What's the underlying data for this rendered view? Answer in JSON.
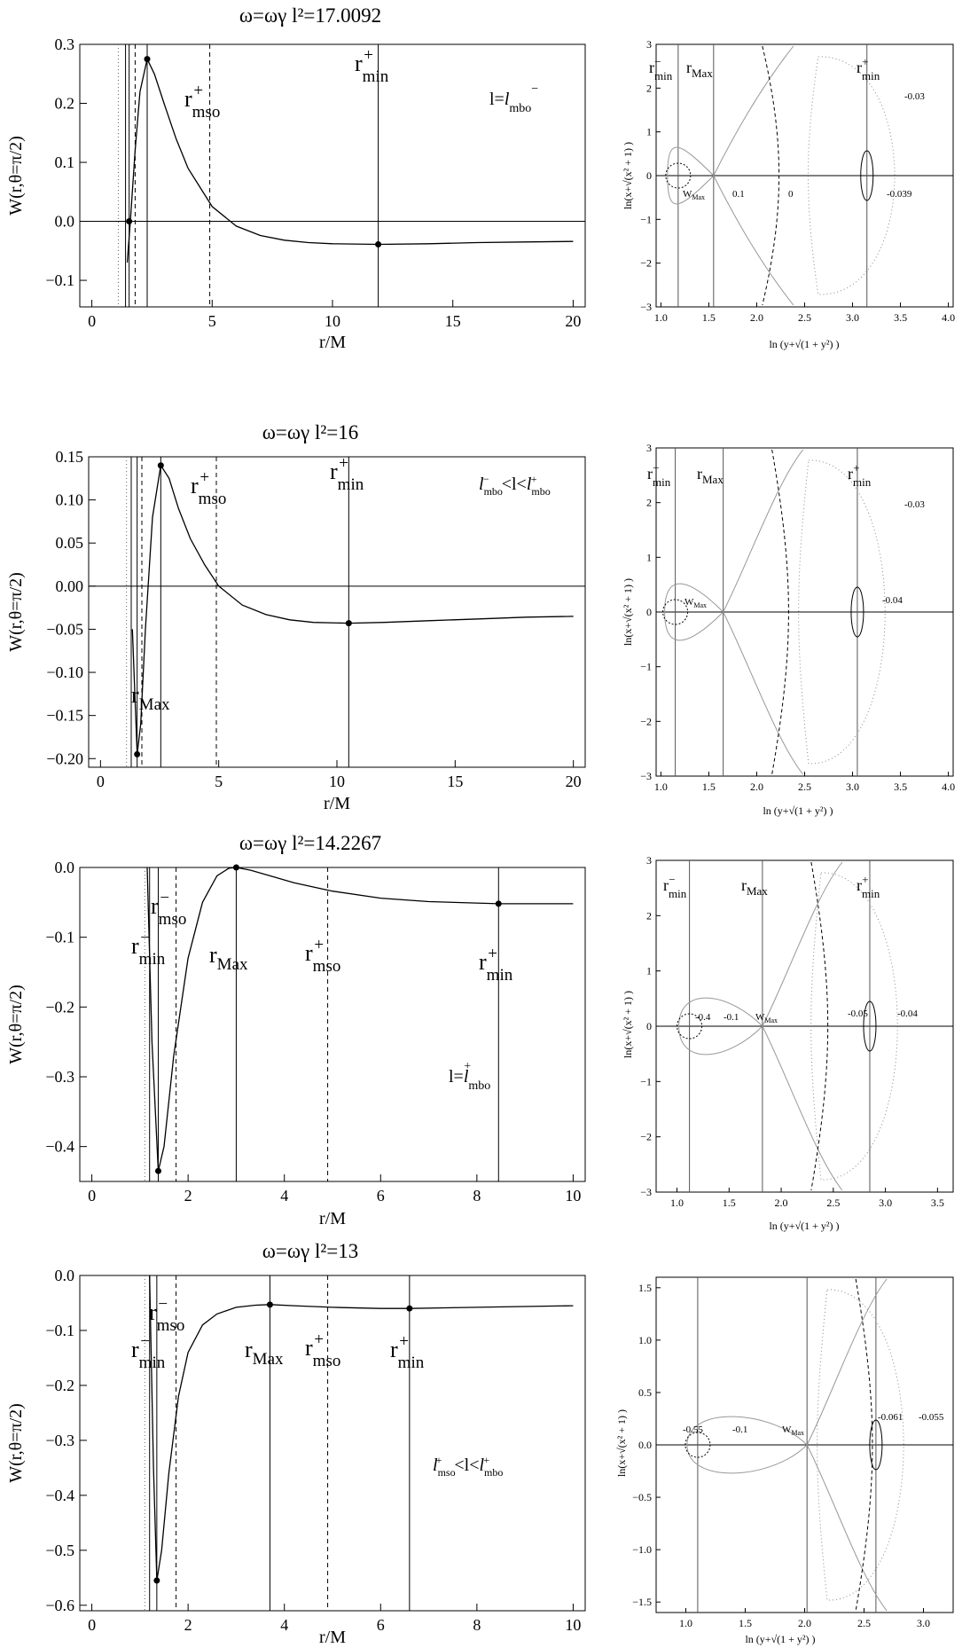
{
  "panels": [
    {
      "title": "ω=ωγ l²=17.0092",
      "xlabel": "r/M",
      "ylabel": "W(r,θ=π/2)",
      "annotation": "l=l⁻mbo",
      "marker_labels": [
        "r⁺mso",
        "r⁺min"
      ],
      "contour": {
        "xlabel": "ln (y+√(1 + y²) )",
        "ylabel": "ln(x+√(x² + 1) )",
        "labels": [
          "r⁻min",
          "rMax",
          "r⁺min",
          "WMax",
          "0.1",
          "0",
          "-0.039",
          "-0.03"
        ]
      }
    },
    {
      "title": "ω=ωγ l²=16",
      "xlabel": "r/M",
      "ylabel": "W(r,θ=π/2)",
      "annotation": "l⁻mbo<l<l⁺mbo",
      "marker_labels": [
        "r⁺mso",
        "r⁺min",
        "rMax"
      ],
      "contour": {
        "xlabel": "ln (y+√(1 + y²) )",
        "ylabel": "ln(x+√(x² + 1) )",
        "labels": [
          "r⁻min",
          "rMax",
          "r⁺min",
          "WMax",
          "-0.03",
          "-0.04"
        ]
      }
    },
    {
      "title": "ω=ωγ l²=14.2267",
      "xlabel": "r/M",
      "ylabel": "W(r,θ=π/2)",
      "annotation": "l=l⁺mbo",
      "marker_labels": [
        "r⁻mso",
        "r⁻min",
        "rMax",
        "r⁺mso",
        "r⁺min"
      ],
      "contour": {
        "xlabel": "ln (y+√(1 + y²) )",
        "ylabel": "ln(x+√(x² + 1) )",
        "labels": [
          "r⁻min",
          "rMax",
          "r⁺min",
          "WMax",
          "-0.4",
          "-0.1",
          "-0.05",
          "-0.04"
        ]
      }
    },
    {
      "title": "ω=ωγ l²=13",
      "xlabel": "r/M",
      "ylabel": "W(r,θ=π/2)",
      "annotation": "l⁺mso<l<l⁺mbo",
      "marker_labels": [
        "r⁻mso",
        "r⁻min",
        "rMax",
        "r⁺mso",
        "r⁺min"
      ],
      "contour": {
        "xlabel": "ln (y+√(1 + y²) )",
        "ylabel": "ln(x+√(x² + 1) )",
        "labels": [
          "WMax",
          "-0.55",
          "-0.1",
          "-0.061",
          "-0.055"
        ]
      }
    }
  ],
  "chart_data": [
    {
      "type": "line",
      "title": "ω=ωγ l²=17.0092",
      "xlabel": "r/M",
      "ylabel": "W(r,θ=π/2)",
      "xlim": [
        -0.5,
        20.5
      ],
      "ylim": [
        -0.145,
        0.3
      ],
      "xticks": [
        0,
        5,
        10,
        15,
        20
      ],
      "yticks": [
        -0.1,
        0.0,
        0.1,
        0.2,
        0.3
      ],
      "series": [
        {
          "x": [
            1.47,
            1.6,
            1.8,
            2.0,
            2.3,
            2.6,
            3.0,
            3.5,
            4.0,
            5.0,
            6.0,
            7.0,
            8.0,
            9.0,
            10.0,
            11.9,
            14.0,
            16.0,
            18.0,
            20.0
          ],
          "y": [
            -0.07,
            0.0,
            0.12,
            0.22,
            0.275,
            0.25,
            0.2,
            0.14,
            0.09,
            0.025,
            -0.008,
            -0.024,
            -0.032,
            -0.036,
            -0.038,
            -0.039,
            -0.038,
            -0.036,
            -0.035,
            -0.034
          ]
        }
      ],
      "points": [
        {
          "x": 1.55,
          "y": 0.0
        },
        {
          "x": 2.3,
          "y": 0.275
        },
        {
          "x": 11.9,
          "y": -0.039
        }
      ],
      "vlines": [
        {
          "x": 1.1,
          "style": "dotted"
        },
        {
          "x": 1.4,
          "style": "solid"
        },
        {
          "x": 1.55,
          "style": "solid"
        },
        {
          "x": 1.8,
          "style": "dashed"
        },
        {
          "x": 2.3,
          "style": "solid"
        },
        {
          "x": 4.9,
          "style": "dashed"
        },
        {
          "x": 11.9,
          "style": "solid"
        }
      ]
    },
    {
      "type": "line",
      "title": "ω=ωγ l²=16",
      "xlabel": "r/M",
      "ylabel": "W(r,θ=π/2)",
      "xlim": [
        -0.5,
        20.5
      ],
      "ylim": [
        -0.21,
        0.15
      ],
      "xticks": [
        0,
        5,
        10,
        15,
        20
      ],
      "yticks": [
        -0.2,
        -0.15,
        -0.1,
        -0.05,
        0.0,
        0.05,
        0.1,
        0.15
      ],
      "series": [
        {
          "x": [
            1.35,
            1.55,
            1.7,
            1.9,
            2.2,
            2.55,
            2.9,
            3.3,
            3.8,
            4.4,
            5.0,
            6.0,
            7.0,
            8.0,
            9.0,
            10.5,
            12.0,
            14.0,
            16.0,
            18.0,
            20.0
          ],
          "y": [
            -0.05,
            -0.195,
            -0.16,
            -0.05,
            0.08,
            0.14,
            0.125,
            0.09,
            0.055,
            0.025,
            0.0,
            -0.022,
            -0.033,
            -0.039,
            -0.042,
            -0.043,
            -0.042,
            -0.04,
            -0.038,
            -0.036,
            -0.035
          ]
        }
      ],
      "points": [
        {
          "x": 1.55,
          "y": -0.195
        },
        {
          "x": 2.55,
          "y": 0.14
        },
        {
          "x": 10.5,
          "y": -0.043
        }
      ],
      "vlines": [
        {
          "x": 1.1,
          "style": "dotted"
        },
        {
          "x": 1.3,
          "style": "solid"
        },
        {
          "x": 1.55,
          "style": "solid"
        },
        {
          "x": 1.75,
          "style": "dashed"
        },
        {
          "x": 2.55,
          "style": "solid"
        },
        {
          "x": 4.9,
          "style": "dashed"
        },
        {
          "x": 10.5,
          "style": "solid"
        }
      ]
    },
    {
      "type": "line",
      "title": "ω=ωγ l²=14.2267",
      "xlabel": "r/M",
      "ylabel": "W(r,θ=π/2)",
      "xlim": [
        -0.25,
        10.25
      ],
      "ylim": [
        -0.45,
        0.0
      ],
      "xticks": [
        0,
        2,
        4,
        6,
        8,
        10
      ],
      "yticks": [
        -0.4,
        -0.3,
        -0.2,
        -0.1,
        0.0
      ],
      "series": [
        {
          "x": [
            1.15,
            1.25,
            1.38,
            1.5,
            1.7,
            2.0,
            2.3,
            2.6,
            2.85,
            3.0,
            3.3,
            3.7,
            4.2,
            5.0,
            6.0,
            7.0,
            8.45,
            9.5,
            10.0
          ],
          "y": [
            0.0,
            -0.25,
            -0.435,
            -0.4,
            -0.27,
            -0.13,
            -0.05,
            -0.012,
            -0.001,
            0.0,
            -0.004,
            -0.012,
            -0.022,
            -0.034,
            -0.044,
            -0.049,
            -0.052,
            -0.052,
            -0.052
          ]
        }
      ],
      "points": [
        {
          "x": 1.38,
          "y": -0.435
        },
        {
          "x": 3.0,
          "y": 0.0
        },
        {
          "x": 8.45,
          "y": -0.052
        }
      ],
      "vlines": [
        {
          "x": 1.1,
          "style": "dotted"
        },
        {
          "x": 1.2,
          "style": "solid"
        },
        {
          "x": 1.38,
          "style": "solid"
        },
        {
          "x": 1.75,
          "style": "dashed"
        },
        {
          "x": 3.0,
          "style": "solid"
        },
        {
          "x": 4.9,
          "style": "dashed"
        },
        {
          "x": 8.45,
          "style": "solid"
        }
      ]
    },
    {
      "type": "line",
      "title": "ω=ωγ l²=13",
      "xlabel": "r/M",
      "ylabel": "W(r,θ=π/2)",
      "xlim": [
        -0.25,
        10.25
      ],
      "ylim": [
        -0.61,
        0.0
      ],
      "xticks": [
        0,
        2,
        4,
        6,
        8,
        10
      ],
      "yticks": [
        -0.6,
        -0.5,
        -0.4,
        -0.3,
        -0.2,
        -0.1,
        0.0
      ],
      "series": [
        {
          "x": [
            1.2,
            1.28,
            1.35,
            1.45,
            1.6,
            1.8,
            2.0,
            2.3,
            2.6,
            3.0,
            3.4,
            3.7,
            4.2,
            5.0,
            6.0,
            6.6,
            8.0,
            10.0
          ],
          "y": [
            0.0,
            -0.35,
            -0.555,
            -0.5,
            -0.36,
            -0.22,
            -0.14,
            -0.09,
            -0.07,
            -0.058,
            -0.054,
            -0.053,
            -0.055,
            -0.058,
            -0.06,
            -0.06,
            -0.058,
            -0.055
          ]
        }
      ],
      "points": [
        {
          "x": 1.35,
          "y": -0.555
        },
        {
          "x": 3.7,
          "y": -0.053
        },
        {
          "x": 6.6,
          "y": -0.06
        }
      ],
      "vlines": [
        {
          "x": 1.1,
          "style": "dotted"
        },
        {
          "x": 1.2,
          "style": "solid"
        },
        {
          "x": 1.35,
          "style": "solid"
        },
        {
          "x": 1.75,
          "style": "dashed"
        },
        {
          "x": 3.7,
          "style": "solid"
        },
        {
          "x": 4.9,
          "style": "dashed"
        },
        {
          "x": 6.6,
          "style": "solid"
        }
      ]
    }
  ]
}
